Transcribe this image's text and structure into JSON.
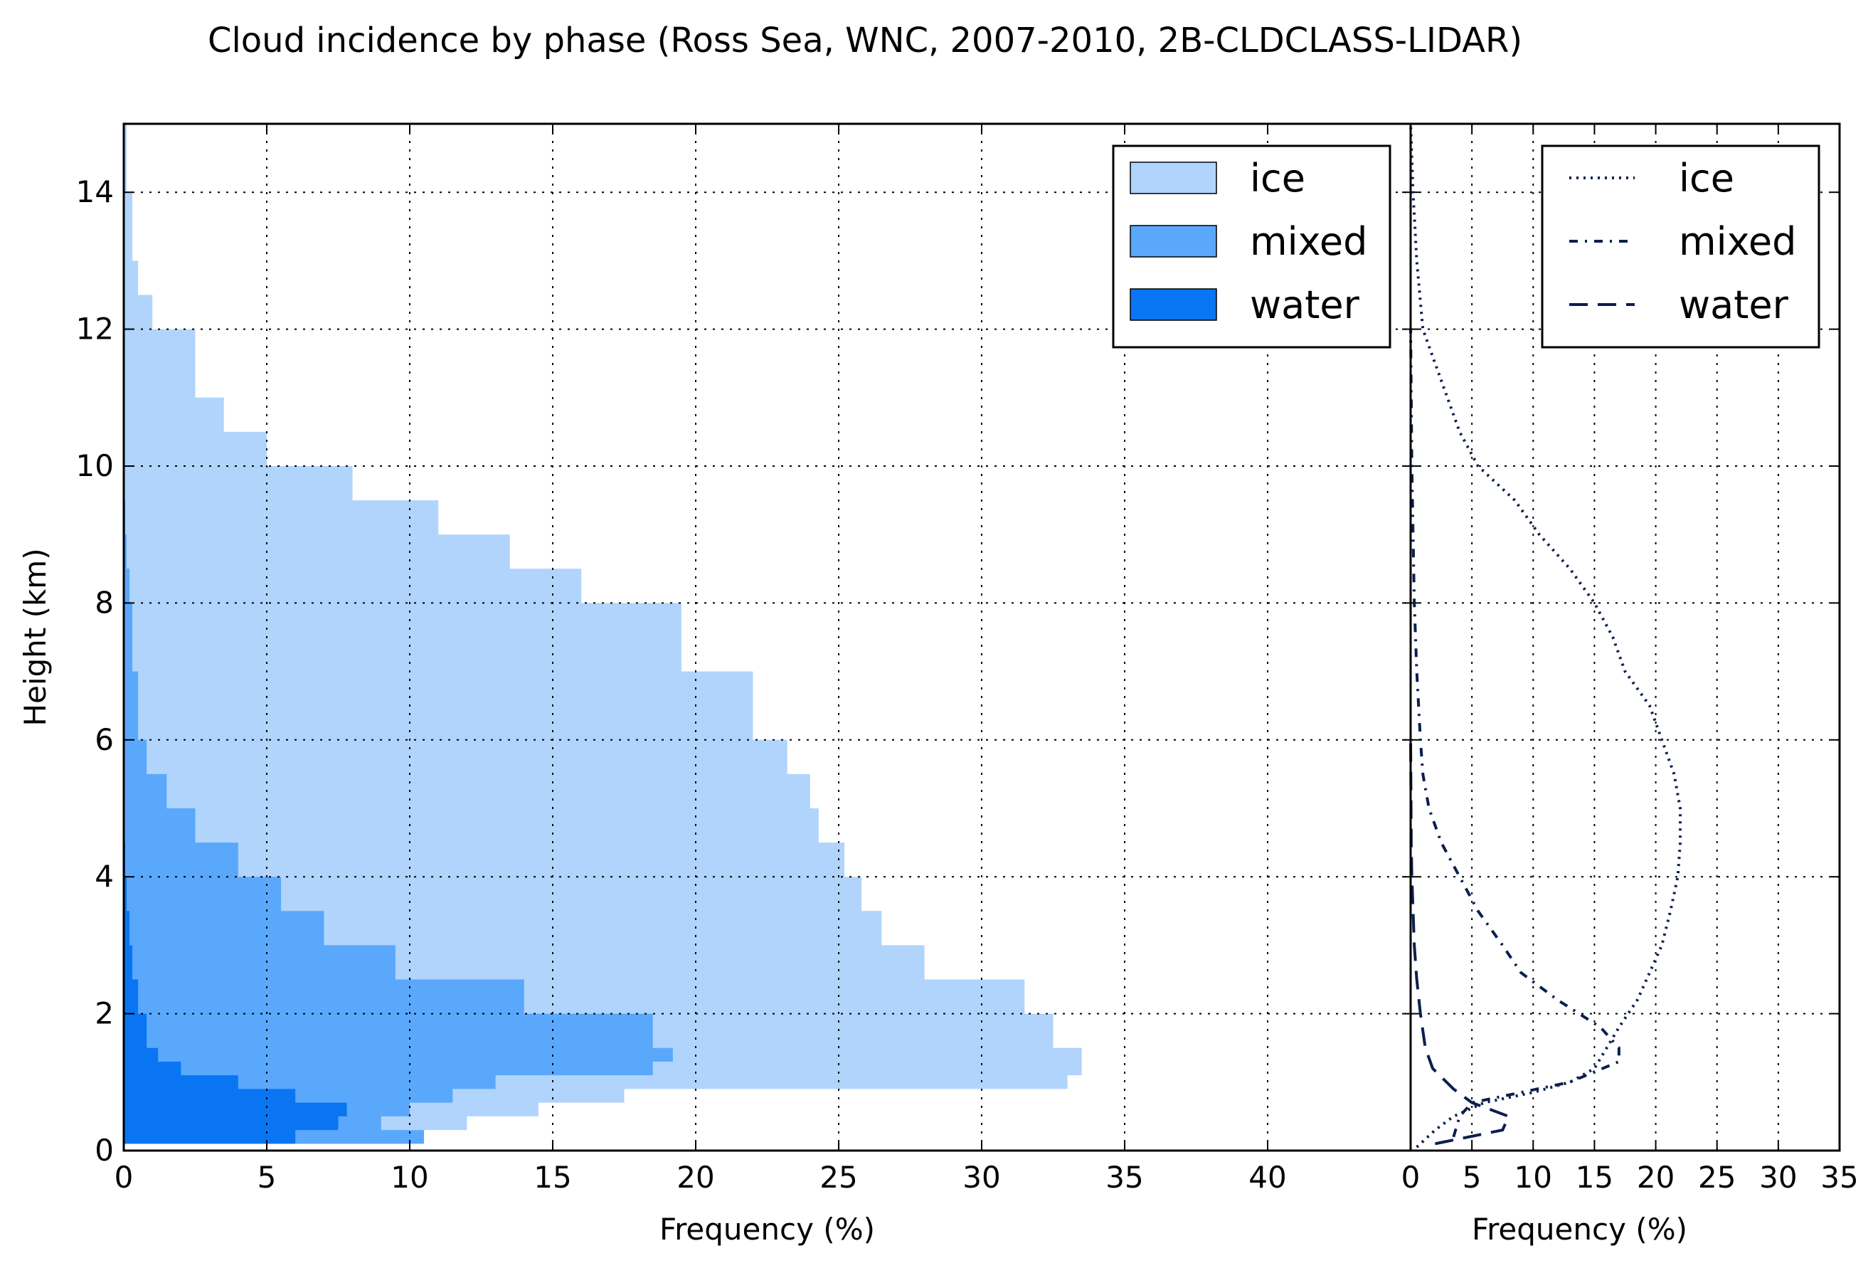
{
  "title": "Cloud incidence by phase (Ross Sea, WNC, 2007-2010, 2B-CLDCLASS-LIDAR)",
  "chart_data": [
    {
      "type": "area",
      "orientation": "horizontal",
      "panel": "left",
      "xlabel": "Frequency (%)",
      "ylabel": "Height (km)",
      "xlim": [
        0,
        45
      ],
      "ylim": [
        0,
        15
      ],
      "xticks": [
        "0",
        "5",
        "10",
        "15",
        "20",
        "25",
        "30",
        "35",
        "40"
      ],
      "yticks": [
        "0",
        "2",
        "4",
        "6",
        "8",
        "10",
        "12",
        "14"
      ],
      "grid": true,
      "stacked": true,
      "legend_position": "top-right",
      "colors": {
        "ice": "#b0d4fc",
        "mixed": "#5aa8fb",
        "water": "#0a75f2"
      },
      "legend": [
        {
          "label": "ice",
          "color": "#b0d4fc"
        },
        {
          "label": "mixed",
          "color": "#5aa8fb"
        },
        {
          "label": "water",
          "color": "#0a75f2"
        }
      ],
      "height_km": [
        0.1,
        0.3,
        0.5,
        0.7,
        0.9,
        1.1,
        1.3,
        1.5,
        2.0,
        2.5,
        3.0,
        3.5,
        4.0,
        4.5,
        5.0,
        5.5,
        6.0,
        7.0,
        8.0,
        8.5,
        9.0,
        9.5,
        10.0,
        10.5,
        11.0,
        12.0,
        12.5,
        13.0,
        14.0,
        15.0
      ],
      "series": [
        {
          "name": "water",
          "cumulative_values": [
            6,
            7.5,
            7.8,
            6,
            4,
            2,
            1.2,
            0.8,
            0.5,
            0.3,
            0.2,
            0.1,
            0.05,
            0,
            0,
            0,
            0,
            0,
            0,
            0,
            0,
            0,
            0,
            0,
            0,
            0,
            0,
            0,
            0,
            0
          ]
        },
        {
          "name": "mixed",
          "cumulative_values": [
            10.5,
            9,
            10,
            11.5,
            13,
            18.5,
            19.2,
            18.5,
            14,
            9.5,
            7,
            5.5,
            4,
            2.5,
            1.5,
            0.8,
            0.5,
            0.3,
            0.2,
            0.1,
            0.05,
            0,
            0,
            0,
            0,
            0,
            0,
            0,
            0,
            0
          ]
        },
        {
          "name": "ice",
          "cumulative_values": [
            10,
            12,
            14.5,
            17.5,
            33,
            33.5,
            33.5,
            32.5,
            31.5,
            28,
            26.5,
            25.8,
            25.2,
            24.3,
            24,
            23.2,
            22,
            19.5,
            16,
            13.5,
            11,
            8,
            5,
            3.5,
            2.5,
            1,
            0.5,
            0.3,
            0.1,
            0
          ]
        }
      ]
    },
    {
      "type": "line",
      "orientation": "horizontal",
      "panel": "right",
      "xlabel": "Frequency (%)",
      "ylabel": "",
      "xlim": [
        0,
        35
      ],
      "ylim": [
        0,
        15
      ],
      "xticks": [
        "0",
        "5",
        "10",
        "15",
        "20",
        "25",
        "30",
        "35"
      ],
      "grid": true,
      "legend_position": "top-right",
      "legend": [
        {
          "label": "ice",
          "style": "dotted"
        },
        {
          "label": "mixed",
          "style": "dash-dot"
        },
        {
          "label": "water",
          "style": "dashed"
        }
      ],
      "line_color": "#0b1f4e",
      "series": [
        {
          "name": "ice",
          "y": [
            0.05,
            0.3,
            0.5,
            0.7,
            0.85,
            1.0,
            1.2,
            1.5,
            1.8,
            2.2,
            2.6,
            3.0,
            3.5,
            4.0,
            4.5,
            5.0,
            5.5,
            6.0,
            6.5,
            7.0,
            7.5,
            8.0,
            8.5,
            9.0,
            9.5,
            10.0,
            10.5,
            11.0,
            11.5,
            12.0,
            13.0,
            14.0,
            15.0
          ],
          "x": [
            0.5,
            2,
            3.5,
            6,
            10,
            13,
            15,
            16,
            17,
            18.5,
            19.5,
            20.5,
            21.2,
            21.8,
            22,
            22,
            21.5,
            20.5,
            19.5,
            17.5,
            16.5,
            15,
            13,
            10.5,
            8.5,
            5.5,
            4,
            3,
            2,
            1,
            0.5,
            0.2,
            0
          ]
        },
        {
          "name": "mixed",
          "y": [
            0.2,
            0.5,
            0.7,
            0.85,
            1.0,
            1.3,
            1.5,
            1.8,
            2.2,
            2.6,
            3.0,
            3.5,
            4.0,
            4.5,
            5.0,
            5.5,
            6.0,
            7.0,
            8.0,
            9.0,
            10.0,
            12.0
          ],
          "x": [
            3.5,
            4,
            5,
            9,
            13,
            17,
            17,
            15.5,
            12,
            9,
            7.5,
            5.5,
            4,
            2.5,
            1.5,
            1,
            0.8,
            0.5,
            0.3,
            0.2,
            0.1,
            0
          ]
        },
        {
          "name": "water",
          "y": [
            0.1,
            0.3,
            0.5,
            0.7,
            0.9,
            1.2,
            1.5,
            2.0,
            2.5,
            3.0,
            3.5,
            4.0,
            4.5,
            6.0
          ],
          "x": [
            2,
            7.5,
            8,
            5,
            3.5,
            1.8,
            1.2,
            0.8,
            0.5,
            0.3,
            0.2,
            0.1,
            0.05,
            0
          ]
        }
      ]
    }
  ]
}
